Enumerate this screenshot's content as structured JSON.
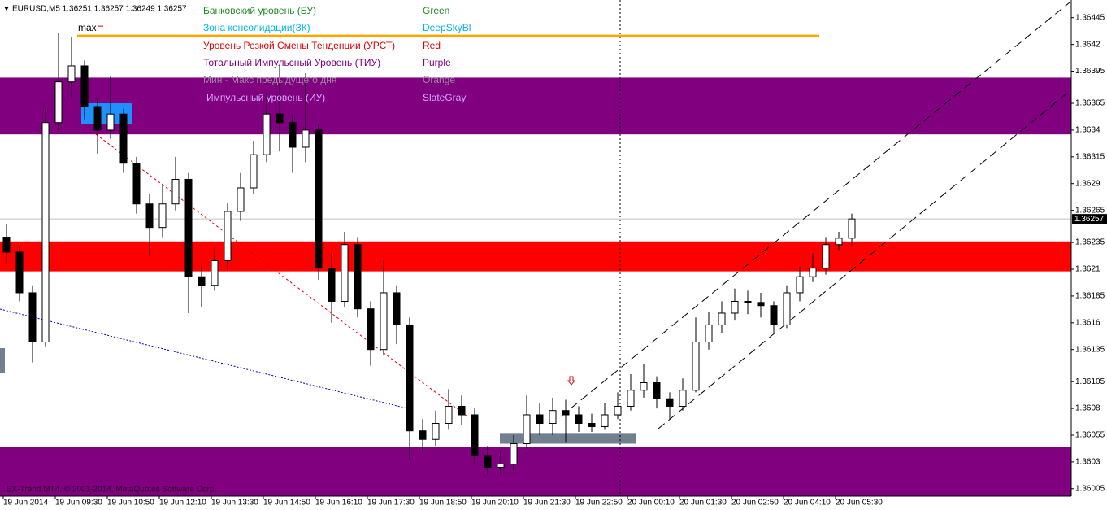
{
  "chart_data": {
    "type": "candlestick",
    "header": "EURUSD,M5  1.36251 1.36257 1.36249 1.36257",
    "footer": "EX-Trend MT4, © 2001-2014, MetaQuotes Software Corp.",
    "max_label": "max",
    "last_price": 1.36257,
    "ylim": [
      1.35998,
      1.3646
    ],
    "yticks": [
      1.36445,
      1.3642,
      1.36395,
      1.36365,
      1.3634,
      1.36315,
      1.3629,
      1.36265,
      1.36235,
      1.3621,
      1.36185,
      1.3616,
      1.36135,
      1.36105,
      1.3608,
      1.36055,
      1.3603,
      1.36005
    ],
    "xticks": [
      "19 Jun 2014",
      "19 Jun 09:30",
      "19 Jun 10:50",
      "19 Jun 12:10",
      "19 Jun 13:30",
      "19 Jun 14:50",
      "19 Jun 16:10",
      "19 Jun 17:30",
      "19 Jun 18:50",
      "19 Jun 20:10",
      "19 Jun 21:30",
      "19 Jun 22:50",
      "20 Jun 00:10",
      "20 Jun 01:30",
      "20 Jun 02:50",
      "20 Jun 04:10",
      "20 Jun 05:30"
    ],
    "legend": [
      {
        "label": "Банковский уровень (БУ)",
        "name": "Green",
        "color": "#1e8c1e"
      },
      {
        "label": "Зона консолидации(ЗК)",
        "name": "DeepSkyBl",
        "color": "#00b4f0"
      },
      {
        "label": "Уровень Резкой Смены Тенденции (УРСТ)",
        "name": "Red",
        "color": "#e00000"
      },
      {
        "label": "Тотальный Импульсный Уровень (ТИУ)",
        "name": "Purple",
        "color": "#800080"
      },
      {
        "label": "Мин - Макс предыдущего дня",
        "name": "Orange",
        "color": "#9a8a9a"
      },
      {
        "label": "Импульсный уровень (ИУ)",
        "name": "SlateGray",
        "color": "#d0a8ff"
      }
    ],
    "zones": [
      {
        "top": 1.36389,
        "bottom": 1.36336,
        "color": "#800080"
      },
      {
        "top": 1.36236,
        "bottom": 1.36208,
        "color": "#ff0000"
      },
      {
        "top": 1.36044,
        "bottom": 1.35998,
        "color": "#800080"
      },
      {
        "top": 1.36365,
        "bottom": 1.36346,
        "color": "#1e90ff"
      },
      {
        "top": 1.36057,
        "bottom": 1.36047,
        "color": "#708090"
      }
    ],
    "max_level": {
      "value": 1.36428,
      "color": "#ffa500"
    },
    "candles": [
      [
        1.3624,
        1.36252,
        1.36215,
        1.36226
      ],
      [
        1.36226,
        1.36232,
        1.3618,
        1.36188
      ],
      [
        1.36188,
        1.36195,
        1.36123,
        1.36142
      ],
      [
        1.36142,
        1.3636,
        1.36138,
        1.36347
      ],
      [
        1.36347,
        1.36431,
        1.3634,
        1.36385
      ],
      [
        1.36385,
        1.36427,
        1.3637,
        1.364
      ],
      [
        1.364,
        1.36405,
        1.3635,
        1.36362
      ],
      [
        1.36362,
        1.3637,
        1.36318,
        1.3634
      ],
      [
        1.3634,
        1.3639,
        1.36332,
        1.36355
      ],
      [
        1.36355,
        1.3636,
        1.363,
        1.36309
      ],
      [
        1.36309,
        1.36315,
        1.36262,
        1.36271
      ],
      [
        1.36271,
        1.3628,
        1.36222,
        1.36249
      ],
      [
        1.36249,
        1.3629,
        1.3624,
        1.36271
      ],
      [
        1.36271,
        1.36315,
        1.36265,
        1.36294
      ],
      [
        1.36294,
        1.363,
        1.36169,
        1.36203
      ],
      [
        1.36203,
        1.36215,
        1.36175,
        1.36195
      ],
      [
        1.36195,
        1.3623,
        1.3619,
        1.36218
      ],
      [
        1.36218,
        1.36272,
        1.3621,
        1.36264
      ],
      [
        1.36264,
        1.363,
        1.36255,
        1.36286
      ],
      [
        1.36286,
        1.3633,
        1.3628,
        1.36317
      ],
      [
        1.36317,
        1.36375,
        1.3631,
        1.36355
      ],
      [
        1.36355,
        1.364,
        1.3632,
        1.36347
      ],
      [
        1.36347,
        1.36355,
        1.363,
        1.36324
      ],
      [
        1.36324,
        1.36393,
        1.3631,
        1.3634
      ],
      [
        1.3634,
        1.36345,
        1.362,
        1.36211
      ],
      [
        1.36211,
        1.36225,
        1.3616,
        1.3618
      ],
      [
        1.3618,
        1.36245,
        1.36175,
        1.36233
      ],
      [
        1.36233,
        1.3624,
        1.36165,
        1.36173
      ],
      [
        1.36173,
        1.3618,
        1.3612,
        1.36135
      ],
      [
        1.36135,
        1.36218,
        1.3613,
        1.36188
      ],
      [
        1.36188,
        1.36195,
        1.3614,
        1.36158
      ],
      [
        1.36158,
        1.36165,
        1.36032,
        1.36059
      ],
      [
        1.36059,
        1.3607,
        1.3604,
        1.36051
      ],
      [
        1.36051,
        1.36078,
        1.36045,
        1.36066
      ],
      [
        1.36066,
        1.36098,
        1.3606,
        1.36082
      ],
      [
        1.36082,
        1.36092,
        1.36065,
        1.36074
      ],
      [
        1.36074,
        1.3608,
        1.36028,
        1.36036
      ],
      [
        1.36036,
        1.36045,
        1.36018,
        1.36025
      ],
      [
        1.36025,
        1.3604,
        1.36018,
        1.36028
      ],
      [
        1.36028,
        1.36055,
        1.36022,
        1.36047
      ],
      [
        1.36047,
        1.36092,
        1.36042,
        1.36074
      ],
      [
        1.36074,
        1.36085,
        1.36055,
        1.36066
      ],
      [
        1.36066,
        1.3609,
        1.36055,
        1.36078
      ],
      [
        1.36078,
        1.36088,
        1.36048,
        1.36074
      ],
      [
        1.36074,
        1.36082,
        1.36058,
        1.36066
      ],
      [
        1.36066,
        1.36075,
        1.36058,
        1.36063
      ],
      [
        1.36063,
        1.36085,
        1.3606,
        1.36074
      ],
      [
        1.36074,
        1.36095,
        1.3607,
        1.36082
      ],
      [
        1.36082,
        1.36112,
        1.36078,
        1.36097
      ],
      [
        1.36097,
        1.36122,
        1.3609,
        1.36104
      ],
      [
        1.36104,
        1.3611,
        1.3608,
        1.36089
      ],
      [
        1.36089,
        1.36095,
        1.3607,
        1.36082
      ],
      [
        1.36082,
        1.36108,
        1.36078,
        1.36097
      ],
      [
        1.36097,
        1.36165,
        1.36095,
        1.36142
      ],
      [
        1.36142,
        1.3617,
        1.36135,
        1.36158
      ],
      [
        1.36158,
        1.3618,
        1.3615,
        1.36169
      ],
      [
        1.36169,
        1.36192,
        1.36162,
        1.3618
      ],
      [
        1.3618,
        1.3619,
        1.36168,
        1.36179
      ],
      [
        1.36179,
        1.36188,
        1.36165,
        1.36176
      ],
      [
        1.36176,
        1.3618,
        1.3615,
        1.36158
      ],
      [
        1.36158,
        1.36195,
        1.36155,
        1.36188
      ],
      [
        1.36188,
        1.36212,
        1.3618,
        1.36203
      ],
      [
        1.36203,
        1.36225,
        1.36198,
        1.36211
      ],
      [
        1.36211,
        1.3624,
        1.36205,
        1.36233
      ],
      [
        1.36233,
        1.36245,
        1.36228,
        1.36239
      ],
      [
        1.36239,
        1.36262,
        1.36232,
        1.36257
      ]
    ]
  }
}
